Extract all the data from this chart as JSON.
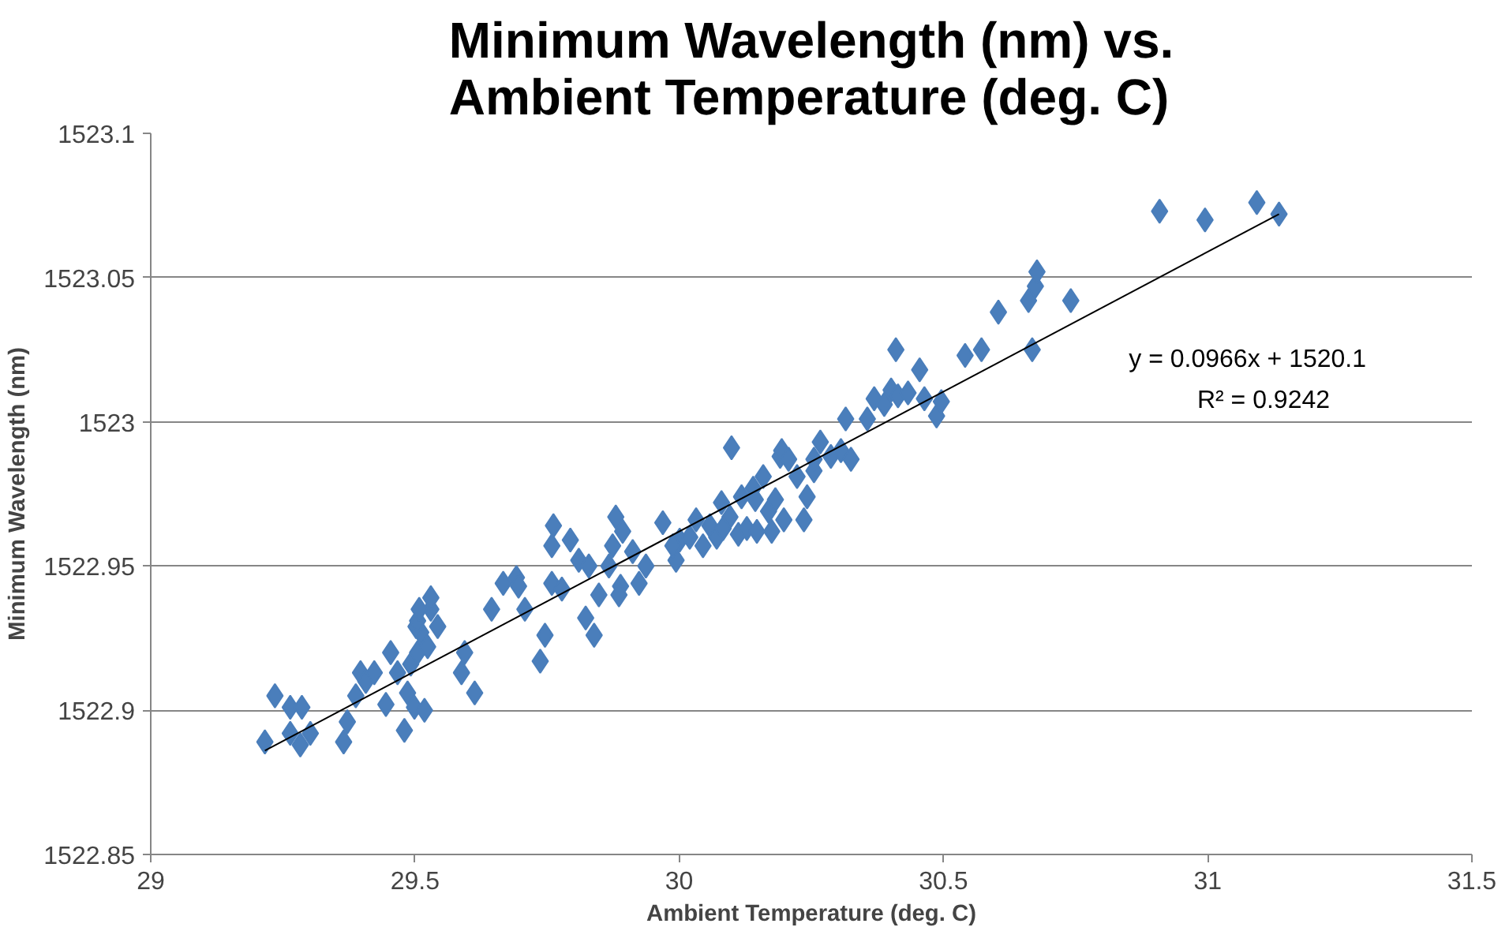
{
  "chart_data": {
    "type": "scatter",
    "title": "Minimum Wavelength (nm) vs.\nAmbient Temperature (deg. C)",
    "xlabel": "Ambient Temperature (deg. C)",
    "ylabel": "Minimum Wavelength (nm)",
    "xlim": [
      29,
      31.5
    ],
    "ylim": [
      1522.85,
      1523.1
    ],
    "xticks": [
      29,
      29.5,
      30,
      30.5,
      31,
      31.5
    ],
    "yticks": [
      1522.85,
      1522.9,
      1522.95,
      1523,
      1523.05,
      1523.1
    ],
    "grid": "y",
    "annotations": [
      "y = 0.0966x + 1520.1",
      "R² = 0.9242"
    ],
    "series": [
      {
        "marker": "diamond",
        "color": "#4a7ebb",
        "x": [
          29.216,
          29.235,
          29.264,
          29.286,
          29.283,
          29.302,
          29.264,
          29.365,
          29.372,
          29.388,
          29.397,
          29.407,
          29.423,
          29.445,
          29.454,
          29.467,
          29.48,
          29.486,
          29.492,
          29.499,
          29.505,
          29.511,
          29.518,
          29.524,
          29.502,
          29.53,
          29.53,
          29.505,
          29.508,
          29.543,
          29.588,
          29.594,
          29.613,
          29.645,
          29.667,
          29.692,
          29.708,
          29.696,
          29.737,
          29.746,
          29.759,
          29.762,
          29.759,
          29.778,
          29.794,
          29.81,
          29.823,
          29.829,
          29.839,
          29.848,
          29.867,
          29.874,
          29.88,
          29.889,
          29.893,
          29.886,
          29.912,
          29.924,
          29.937,
          29.969,
          29.994,
          30.001,
          29.988,
          30.02,
          30.032,
          30.045,
          30.058,
          30.071,
          30.08,
          30.096,
          30.099,
          30.083,
          30.112,
          30.118,
          30.128,
          30.14,
          30.144,
          30.147,
          30.159,
          30.169,
          30.182,
          30.191,
          30.194,
          30.175,
          30.198,
          30.207,
          30.223,
          30.236,
          30.242,
          30.255,
          30.267,
          30.255,
          30.287,
          30.306,
          30.315,
          30.325,
          30.455,
          30.356,
          30.369,
          30.388,
          30.401,
          30.414,
          30.433,
          30.464,
          30.487,
          30.496,
          30.541,
          30.572,
          30.604,
          30.661,
          30.668,
          30.674,
          30.677,
          30.741,
          30.909,
          30.995,
          31.093,
          31.135,
          30.41
        ],
        "values": [
          1522.889,
          1522.905,
          1522.901,
          1522.901,
          1522.888,
          1522.892,
          1522.892,
          1522.889,
          1522.896,
          1522.905,
          1522.913,
          1522.91,
          1522.913,
          1522.902,
          1522.92,
          1522.913,
          1522.893,
          1522.906,
          1522.916,
          1522.901,
          1522.92,
          1522.927,
          1522.9,
          1522.922,
          1522.929,
          1522.935,
          1522.939,
          1522.931,
          1522.935,
          1522.929,
          1522.913,
          1522.92,
          1522.906,
          1522.935,
          1522.944,
          1522.946,
          1522.935,
          1522.943,
          1522.917,
          1522.926,
          1522.944,
          1522.964,
          1522.957,
          1522.942,
          1522.959,
          1522.952,
          1522.932,
          1522.95,
          1522.926,
          1522.94,
          1522.95,
          1522.957,
          1522.967,
          1522.943,
          1522.962,
          1522.94,
          1522.955,
          1522.944,
          1522.95,
          1522.965,
          1522.952,
          1522.959,
          1522.957,
          1522.96,
          1522.966,
          1522.957,
          1522.964,
          1522.96,
          1522.972,
          1522.967,
          1522.991,
          1522.963,
          1522.961,
          1522.974,
          1522.963,
          1522.977,
          1522.973,
          1522.962,
          1522.981,
          1522.969,
          1522.973,
          1522.988,
          1522.99,
          1522.962,
          1522.966,
          1522.987,
          1522.981,
          1522.966,
          1522.974,
          1522.983,
          1522.993,
          1522.987,
          1522.988,
          1522.99,
          1523.001,
          1522.987,
          1523.018,
          1523.001,
          1523.008,
          1523.006,
          1523.011,
          1523.009,
          1523.01,
          1523.008,
          1523.002,
          1523.007,
          1523.023,
          1523.025,
          1523.038,
          1523.042,
          1523.025,
          1523.047,
          1523.052,
          1523.042,
          1523.073,
          1523.07,
          1523.076,
          1523.072,
          1523.025
        ]
      },
      {
        "type": "line",
        "color": "#000000",
        "x": [
          29.216,
          31.135
        ],
        "values": [
          1522.886,
          1523.072
        ]
      }
    ]
  }
}
